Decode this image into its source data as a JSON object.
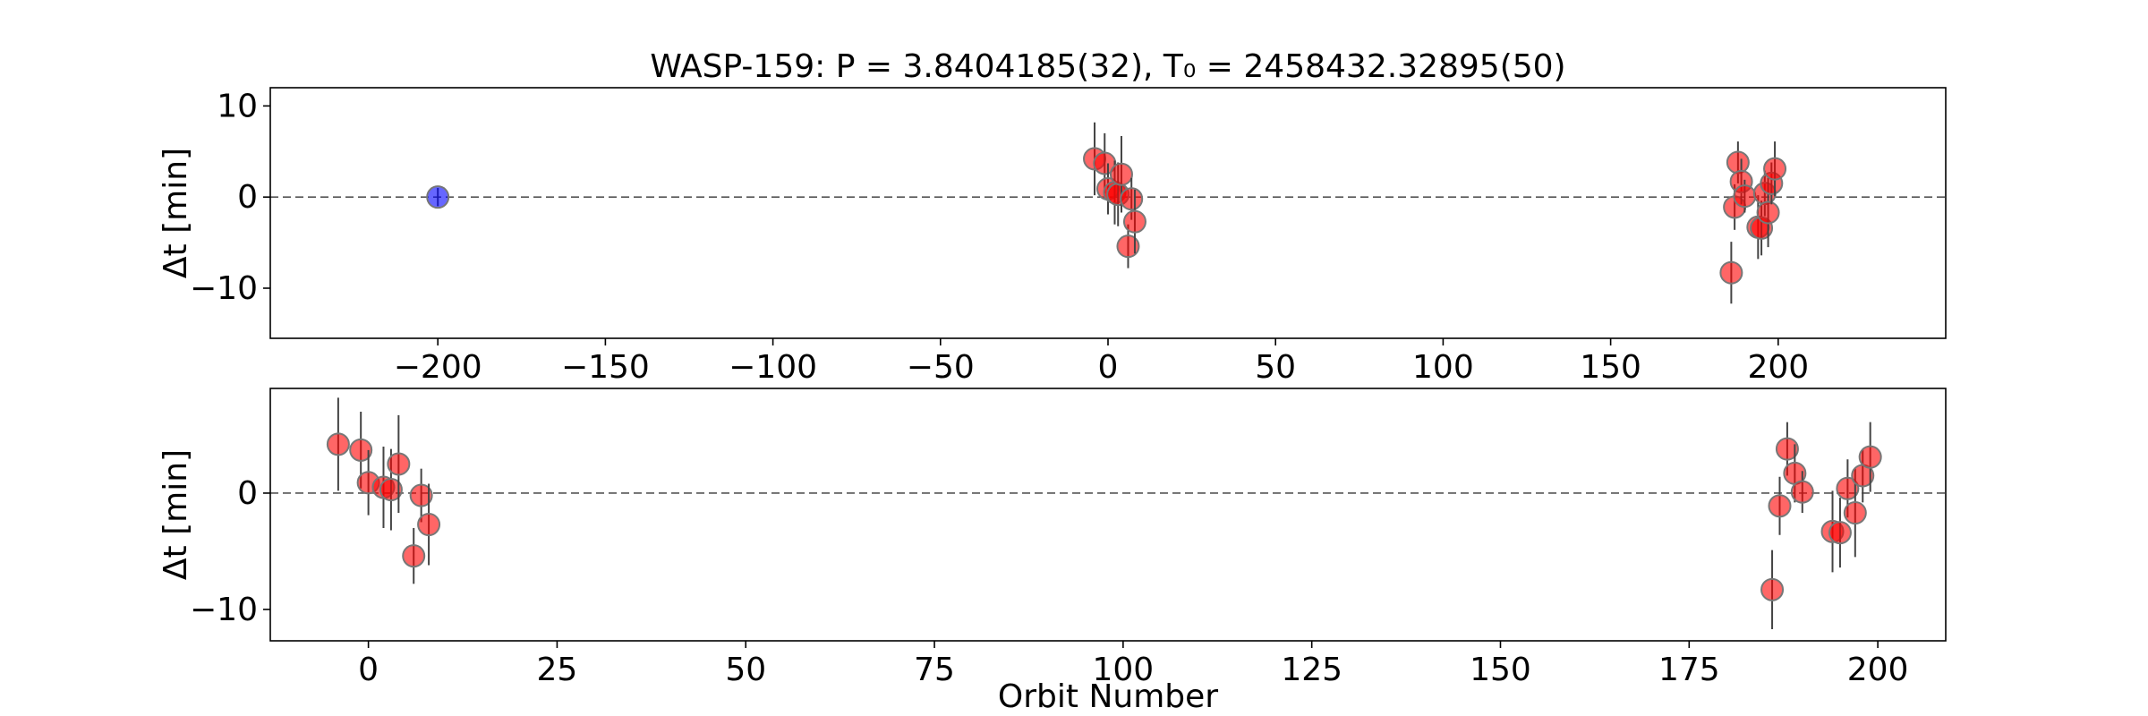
{
  "chart_data": [
    {
      "type": "scatter",
      "title": "WASP-159: P = 3.8404185(32), T₀ = 2458432.32895(50)",
      "xlabel": "",
      "ylabel": "Δt [min]",
      "xlim": [
        -250,
        250
      ],
      "ylim": [
        -15.5,
        12
      ],
      "xticks": [
        -200,
        -150,
        -100,
        -50,
        0,
        50,
        100,
        150,
        200
      ],
      "xtick_labels": [
        "−200",
        "−150",
        "−100",
        "−50",
        "0",
        "50",
        "100",
        "150",
        "200"
      ],
      "yticks": [
        10,
        0,
        -10
      ],
      "ytick_labels": [
        "10",
        "0",
        "−10"
      ],
      "reference_line": 0,
      "series": [
        {
          "color": "#ff0000",
          "points": [
            {
              "x": -4,
              "y": 4.2,
              "err": 4.0
            },
            {
              "x": -1,
              "y": 3.7,
              "err": 3.3
            },
            {
              "x": 0,
              "y": 0.9,
              "err": 2.8
            },
            {
              "x": 2,
              "y": 0.5,
              "err": 3.5
            },
            {
              "x": 3,
              "y": 0.3,
              "err": 3.5
            },
            {
              "x": 4,
              "y": 2.5,
              "err": 4.2
            },
            {
              "x": 6,
              "y": -5.4,
              "err": 2.4
            },
            {
              "x": 7,
              "y": -0.2,
              "err": 2.3
            },
            {
              "x": 8,
              "y": -2.7,
              "err": 3.5
            },
            {
              "x": 186,
              "y": -8.3,
              "err": 3.4
            },
            {
              "x": 187,
              "y": -1.1,
              "err": 2.5
            },
            {
              "x": 188,
              "y": 3.8,
              "err": 2.3
            },
            {
              "x": 189,
              "y": 1.7,
              "err": 2.5
            },
            {
              "x": 190,
              "y": 0.1,
              "err": 1.8
            },
            {
              "x": 194,
              "y": -3.3,
              "err": 3.5
            },
            {
              "x": 195,
              "y": -3.4,
              "err": 3.0
            },
            {
              "x": 196,
              "y": 0.4,
              "err": 2.5
            },
            {
              "x": 197,
              "y": -1.7,
              "err": 3.8
            },
            {
              "x": 198,
              "y": 1.5,
              "err": 2.3
            },
            {
              "x": 199,
              "y": 3.1,
              "err": 3.0
            }
          ]
        },
        {
          "color": "#0000ff",
          "points": [
            {
              "x": -200,
              "y": 0.0,
              "err": 1.0
            }
          ]
        }
      ]
    },
    {
      "type": "scatter",
      "title": "",
      "xlabel": "Orbit Number",
      "ylabel": "Δt [min]",
      "xlim": [
        -13,
        209
      ],
      "ylim": [
        -12.7,
        9
      ],
      "xticks": [
        0,
        25,
        50,
        75,
        100,
        125,
        150,
        175,
        200
      ],
      "xtick_labels": [
        "0",
        "25",
        "50",
        "75",
        "100",
        "125",
        "150",
        "175",
        "200"
      ],
      "yticks": [
        0,
        -10
      ],
      "ytick_labels": [
        "0",
        "−10"
      ],
      "reference_line": 0,
      "series": [
        {
          "color": "#ff0000",
          "points": [
            {
              "x": -4,
              "y": 4.2,
              "err": 4.0
            },
            {
              "x": -1,
              "y": 3.7,
              "err": 3.3
            },
            {
              "x": 0,
              "y": 0.9,
              "err": 2.8
            },
            {
              "x": 2,
              "y": 0.5,
              "err": 3.5
            },
            {
              "x": 3,
              "y": 0.3,
              "err": 3.5
            },
            {
              "x": 4,
              "y": 2.5,
              "err": 4.2
            },
            {
              "x": 6,
              "y": -5.4,
              "err": 2.4
            },
            {
              "x": 7,
              "y": -0.2,
              "err": 2.3
            },
            {
              "x": 8,
              "y": -2.7,
              "err": 3.5
            },
            {
              "x": 186,
              "y": -8.3,
              "err": 3.4
            },
            {
              "x": 187,
              "y": -1.1,
              "err": 2.5
            },
            {
              "x": 188,
              "y": 3.8,
              "err": 2.3
            },
            {
              "x": 189,
              "y": 1.7,
              "err": 2.5
            },
            {
              "x": 190,
              "y": 0.1,
              "err": 1.8
            },
            {
              "x": 194,
              "y": -3.3,
              "err": 3.5
            },
            {
              "x": 195,
              "y": -3.4,
              "err": 3.0
            },
            {
              "x": 196,
              "y": 0.4,
              "err": 2.5
            },
            {
              "x": 197,
              "y": -1.7,
              "err": 3.8
            },
            {
              "x": 198,
              "y": 1.5,
              "err": 2.3
            },
            {
              "x": 199,
              "y": 3.1,
              "err": 3.0
            }
          ]
        }
      ]
    }
  ]
}
